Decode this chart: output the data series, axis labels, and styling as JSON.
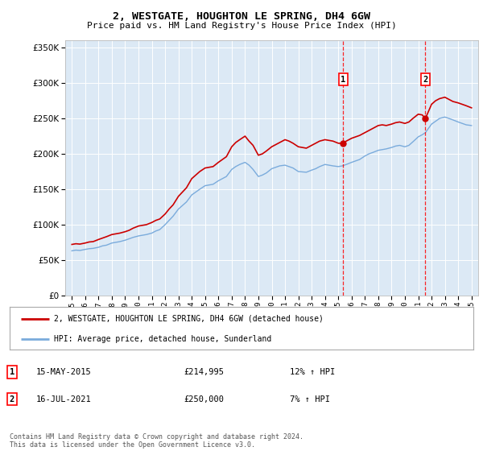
{
  "title": "2, WESTGATE, HOUGHTON LE SPRING, DH4 6GW",
  "subtitle": "Price paid vs. HM Land Registry's House Price Index (HPI)",
  "background_color": "#ffffff",
  "plot_bg_color": "#dce9f5",
  "ylim": [
    0,
    360000
  ],
  "yticks": [
    0,
    50000,
    100000,
    150000,
    200000,
    250000,
    300000,
    350000
  ],
  "legend_label_red": "2, WESTGATE, HOUGHTON LE SPRING, DH4 6GW (detached house)",
  "legend_label_blue": "HPI: Average price, detached house, Sunderland",
  "marker1_date": 2015.37,
  "marker1_price": 214995,
  "marker2_date": 2021.54,
  "marker2_price": 250000,
  "footer": "Contains HM Land Registry data © Crown copyright and database right 2024.\nThis data is licensed under the Open Government Licence v3.0.",
  "red_color": "#cc0000",
  "blue_color": "#7aabdc",
  "hpi_red": [
    [
      1995.0,
      72000
    ],
    [
      1995.3,
      73000
    ],
    [
      1995.6,
      72500
    ],
    [
      1996.0,
      74000
    ],
    [
      1996.3,
      75500
    ],
    [
      1996.6,
      76000
    ],
    [
      1997.0,
      79000
    ],
    [
      1997.3,
      81000
    ],
    [
      1997.6,
      83000
    ],
    [
      1998.0,
      86000
    ],
    [
      1998.3,
      87000
    ],
    [
      1998.6,
      88000
    ],
    [
      1999.0,
      90000
    ],
    [
      1999.3,
      92000
    ],
    [
      1999.6,
      95000
    ],
    [
      2000.0,
      98000
    ],
    [
      2000.3,
      99000
    ],
    [
      2000.6,
      100000
    ],
    [
      2001.0,
      103000
    ],
    [
      2001.3,
      106000
    ],
    [
      2001.6,
      108000
    ],
    [
      2002.0,
      115000
    ],
    [
      2002.3,
      122000
    ],
    [
      2002.6,
      128000
    ],
    [
      2003.0,
      140000
    ],
    [
      2003.3,
      146000
    ],
    [
      2003.6,
      152000
    ],
    [
      2004.0,
      165000
    ],
    [
      2004.3,
      170000
    ],
    [
      2004.6,
      175000
    ],
    [
      2005.0,
      180000
    ],
    [
      2005.3,
      181000
    ],
    [
      2005.6,
      182000
    ],
    [
      2006.0,
      188000
    ],
    [
      2006.3,
      192000
    ],
    [
      2006.6,
      196000
    ],
    [
      2007.0,
      210000
    ],
    [
      2007.3,
      216000
    ],
    [
      2007.6,
      220000
    ],
    [
      2008.0,
      225000
    ],
    [
      2008.3,
      218000
    ],
    [
      2008.6,
      212000
    ],
    [
      2009.0,
      198000
    ],
    [
      2009.3,
      200000
    ],
    [
      2009.6,
      204000
    ],
    [
      2010.0,
      210000
    ],
    [
      2010.3,
      213000
    ],
    [
      2010.6,
      216000
    ],
    [
      2011.0,
      220000
    ],
    [
      2011.3,
      218000
    ],
    [
      2011.6,
      215000
    ],
    [
      2012.0,
      210000
    ],
    [
      2012.3,
      209000
    ],
    [
      2012.6,
      208000
    ],
    [
      2013.0,
      212000
    ],
    [
      2013.3,
      215000
    ],
    [
      2013.6,
      218000
    ],
    [
      2014.0,
      220000
    ],
    [
      2014.3,
      219000
    ],
    [
      2014.6,
      218000
    ],
    [
      2015.0,
      215000
    ],
    [
      2015.37,
      214995
    ],
    [
      2015.6,
      218000
    ],
    [
      2016.0,
      222000
    ],
    [
      2016.3,
      224000
    ],
    [
      2016.6,
      226000
    ],
    [
      2017.0,
      230000
    ],
    [
      2017.3,
      233000
    ],
    [
      2017.6,
      236000
    ],
    [
      2018.0,
      240000
    ],
    [
      2018.3,
      241000
    ],
    [
      2018.6,
      240000
    ],
    [
      2019.0,
      242000
    ],
    [
      2019.3,
      244000
    ],
    [
      2019.6,
      245000
    ],
    [
      2020.0,
      243000
    ],
    [
      2020.3,
      245000
    ],
    [
      2020.6,
      250000
    ],
    [
      2021.0,
      256000
    ],
    [
      2021.3,
      255000
    ],
    [
      2021.54,
      250000
    ],
    [
      2022.0,
      270000
    ],
    [
      2022.3,
      275000
    ],
    [
      2022.6,
      278000
    ],
    [
      2023.0,
      280000
    ],
    [
      2023.3,
      277000
    ],
    [
      2023.6,
      274000
    ],
    [
      2024.0,
      272000
    ],
    [
      2024.3,
      270000
    ],
    [
      2024.6,
      268000
    ],
    [
      2025.0,
      265000
    ]
  ],
  "hpi_blue": [
    [
      1995.0,
      63000
    ],
    [
      1995.3,
      64000
    ],
    [
      1995.6,
      63500
    ],
    [
      1996.0,
      65000
    ],
    [
      1996.3,
      66000
    ],
    [
      1996.6,
      66500
    ],
    [
      1997.0,
      68000
    ],
    [
      1997.3,
      70000
    ],
    [
      1997.6,
      71000
    ],
    [
      1998.0,
      74000
    ],
    [
      1998.3,
      75000
    ],
    [
      1998.6,
      76000
    ],
    [
      1999.0,
      78000
    ],
    [
      1999.3,
      80000
    ],
    [
      1999.6,
      82000
    ],
    [
      2000.0,
      84000
    ],
    [
      2000.3,
      85000
    ],
    [
      2000.6,
      86000
    ],
    [
      2001.0,
      88000
    ],
    [
      2001.3,
      91000
    ],
    [
      2001.6,
      93000
    ],
    [
      2002.0,
      100000
    ],
    [
      2002.3,
      106000
    ],
    [
      2002.6,
      112000
    ],
    [
      2003.0,
      122000
    ],
    [
      2003.3,
      127000
    ],
    [
      2003.6,
      132000
    ],
    [
      2004.0,
      142000
    ],
    [
      2004.3,
      146000
    ],
    [
      2004.6,
      150000
    ],
    [
      2005.0,
      155000
    ],
    [
      2005.3,
      156000
    ],
    [
      2005.6,
      157000
    ],
    [
      2006.0,
      162000
    ],
    [
      2006.3,
      165000
    ],
    [
      2006.6,
      168000
    ],
    [
      2007.0,
      178000
    ],
    [
      2007.3,
      182000
    ],
    [
      2007.6,
      185000
    ],
    [
      2008.0,
      188000
    ],
    [
      2008.3,
      184000
    ],
    [
      2008.6,
      178000
    ],
    [
      2009.0,
      168000
    ],
    [
      2009.3,
      170000
    ],
    [
      2009.6,
      173000
    ],
    [
      2010.0,
      179000
    ],
    [
      2010.3,
      181000
    ],
    [
      2010.6,
      183000
    ],
    [
      2011.0,
      184000
    ],
    [
      2011.3,
      182000
    ],
    [
      2011.6,
      180000
    ],
    [
      2012.0,
      175000
    ],
    [
      2012.3,
      174500
    ],
    [
      2012.6,
      174000
    ],
    [
      2013.0,
      177000
    ],
    [
      2013.3,
      179000
    ],
    [
      2013.6,
      182000
    ],
    [
      2014.0,
      185000
    ],
    [
      2014.3,
      184000
    ],
    [
      2014.6,
      183000
    ],
    [
      2015.0,
      182000
    ],
    [
      2015.3,
      183000
    ],
    [
      2015.6,
      185000
    ],
    [
      2016.0,
      188000
    ],
    [
      2016.3,
      190000
    ],
    [
      2016.6,
      192000
    ],
    [
      2017.0,
      197000
    ],
    [
      2017.3,
      200000
    ],
    [
      2017.6,
      202000
    ],
    [
      2018.0,
      205000
    ],
    [
      2018.3,
      206000
    ],
    [
      2018.6,
      207000
    ],
    [
      2019.0,
      209000
    ],
    [
      2019.3,
      211000
    ],
    [
      2019.6,
      212000
    ],
    [
      2020.0,
      210000
    ],
    [
      2020.3,
      212000
    ],
    [
      2020.6,
      217000
    ],
    [
      2021.0,
      224000
    ],
    [
      2021.3,
      227000
    ],
    [
      2021.54,
      230000
    ],
    [
      2022.0,
      242000
    ],
    [
      2022.3,
      246000
    ],
    [
      2022.6,
      250000
    ],
    [
      2023.0,
      252000
    ],
    [
      2023.3,
      250000
    ],
    [
      2023.6,
      248000
    ],
    [
      2024.0,
      245000
    ],
    [
      2024.3,
      243000
    ],
    [
      2024.6,
      241000
    ],
    [
      2025.0,
      240000
    ]
  ],
  "xlim": [
    1994.5,
    2025.5
  ],
  "xticks": [
    1995,
    1996,
    1997,
    1998,
    1999,
    2000,
    2001,
    2002,
    2003,
    2004,
    2005,
    2006,
    2007,
    2008,
    2009,
    2010,
    2011,
    2012,
    2013,
    2014,
    2015,
    2016,
    2017,
    2018,
    2019,
    2020,
    2021,
    2022,
    2023,
    2024,
    2025
  ]
}
